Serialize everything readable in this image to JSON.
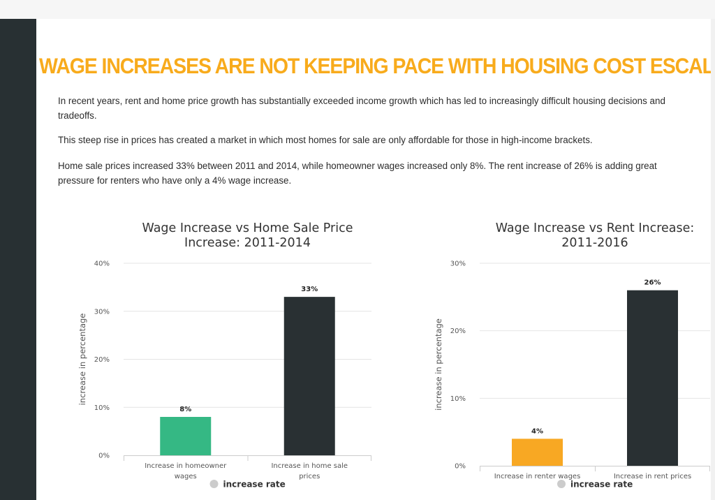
{
  "headline": "WAGE INCREASES ARE NOT KEEPING PACE WITH HOUSING COST ESCALATION",
  "paragraphs": [
    "In recent years, rent and home price growth has substantially exceeded income growth which has led to increasingly difficult housing decisions and tradeoffs.",
    "This steep rise in prices has created a market in which most homes for sale are only affordable for those in high-income brackets.",
    "Home sale prices increased 33% between 2011 and 2014, while homeowner wages increased only 8%. The rent increase of 26% is adding great pressure for renters who have only a 4% wage increase."
  ],
  "colors": {
    "headline": "#f8ab1c",
    "sidebar": "#283033",
    "homeowner_wages_bar": "#35b884",
    "renter_wages_bar": "#f8a823",
    "housing_cost_bar": "#293033",
    "legend_marker": "#cccccc"
  },
  "chart_data": [
    {
      "type": "bar",
      "title": [
        "Wage Increase vs Home Sale Price",
        "Increase: 2011-2014"
      ],
      "ylabel": "increase in percentage",
      "xlabel": "",
      "ylim": [
        0,
        40
      ],
      "yticks": [
        0,
        10,
        20,
        30,
        40
      ],
      "ytick_labels": [
        "0%",
        "10%",
        "20%",
        "30%",
        "40%"
      ],
      "categories": [
        [
          "Increase in homeowner",
          "wages"
        ],
        [
          "Increase in home sale",
          "prices"
        ]
      ],
      "series": [
        {
          "name": "increase rate",
          "values": [
            8,
            33
          ],
          "data_labels": [
            "8%",
            "33%"
          ],
          "colors": [
            "#35b884",
            "#293033"
          ]
        }
      ],
      "legend": "bottom-center",
      "grid": true
    },
    {
      "type": "bar",
      "title": [
        "Wage Increase vs Rent Increase:",
        "2011-2016"
      ],
      "ylabel": "increase in percentage",
      "xlabel": "",
      "ylim": [
        0,
        30
      ],
      "yticks": [
        0,
        10,
        20,
        30
      ],
      "ytick_labels": [
        "0%",
        "10%",
        "20%",
        "30%"
      ],
      "categories": [
        [
          "Increase in renter wages"
        ],
        [
          "Increase in rent prices"
        ]
      ],
      "series": [
        {
          "name": "increase rate",
          "values": [
            4,
            26
          ],
          "data_labels": [
            "4%",
            "26%"
          ],
          "colors": [
            "#f8a823",
            "#293033"
          ]
        }
      ],
      "legend": "bottom-center",
      "grid": true
    }
  ]
}
